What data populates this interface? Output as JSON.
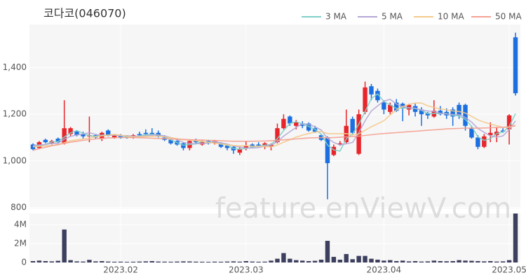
{
  "chart_data": [
    {
      "type": "candlestick",
      "title": "코다코(046070)",
      "watermark": "feature.enViewV.com",
      "up_color": "#e8252b",
      "down_color": "#1b6fe0",
      "open": [
        1070,
        1055,
        1090,
        1075,
        1095,
        1075,
        1115,
        1125,
        1115,
        1105,
        1110,
        1095,
        1130,
        1100,
        1110,
        1105,
        1100,
        1115,
        1120,
        1120,
        1120,
        1100,
        1090,
        1085,
        1075,
        1055,
        1085,
        1070,
        1085,
        1075,
        1075,
        1065,
        1060,
        1035,
        1055,
        1070,
        1070,
        1060,
        1060,
        1080,
        1140,
        1190,
        1150,
        1160,
        1160,
        1140,
        1110,
        1100,
        1025,
        1070,
        1080,
        1180,
        1030,
        1210,
        1320,
        1300,
        1250,
        1210,
        1250,
        1245,
        1220,
        1235,
        1220,
        1205,
        1190,
        1215,
        1210,
        1220,
        1240,
        1240,
        1140,
        1100,
        1060,
        1110,
        1110,
        1130,
        1135,
        1530
      ],
      "high": [
        1075,
        1085,
        1095,
        1090,
        1100,
        1260,
        1145,
        1130,
        1125,
        1190,
        1115,
        1125,
        1135,
        1115,
        1115,
        1110,
        1115,
        1125,
        1135,
        1140,
        1130,
        1110,
        1095,
        1090,
        1080,
        1090,
        1095,
        1090,
        1090,
        1090,
        1080,
        1070,
        1065,
        1060,
        1085,
        1075,
        1080,
        1080,
        1075,
        1160,
        1200,
        1195,
        1175,
        1170,
        1165,
        1150,
        1115,
        1105,
        1070,
        1085,
        1220,
        1190,
        1220,
        1340,
        1330,
        1310,
        1260,
        1250,
        1265,
        1250,
        1245,
        1245,
        1230,
        1210,
        1260,
        1235,
        1225,
        1230,
        1250,
        1245,
        1150,
        1110,
        1115,
        1165,
        1145,
        1140,
        1200,
        1550
      ],
      "low": [
        1045,
        1050,
        1075,
        1070,
        1075,
        1070,
        1105,
        1105,
        1095,
        1080,
        1095,
        1085,
        1105,
        1095,
        1095,
        1095,
        1095,
        1105,
        1110,
        1110,
        1100,
        1085,
        1070,
        1065,
        1045,
        1045,
        1075,
        1065,
        1070,
        1070,
        1055,
        1045,
        1030,
        1025,
        1045,
        1055,
        1060,
        1050,
        1045,
        1075,
        1135,
        1150,
        1135,
        1140,
        1125,
        1120,
        1085,
        835,
        1020,
        1065,
        1075,
        1110,
        1025,
        1200,
        1260,
        1250,
        1200,
        1200,
        1210,
        1170,
        1195,
        1190,
        1150,
        1180,
        1185,
        1195,
        1180,
        1150,
        1180,
        1130,
        1095,
        1050,
        1055,
        1080,
        1080,
        1120,
        1070,
        1280
      ],
      "close": [
        1050,
        1080,
        1080,
        1085,
        1080,
        1140,
        1140,
        1110,
        1105,
        1110,
        1100,
        1120,
        1110,
        1110,
        1100,
        1100,
        1110,
        1110,
        1115,
        1115,
        1105,
        1090,
        1075,
        1070,
        1055,
        1085,
        1080,
        1085,
        1075,
        1085,
        1060,
        1055,
        1045,
        1050,
        1065,
        1060,
        1065,
        1075,
        1070,
        1140,
        1180,
        1160,
        1165,
        1150,
        1130,
        1125,
        1090,
        990,
        1060,
        1075,
        1150,
        1120,
        1200,
        1315,
        1285,
        1260,
        1220,
        1240,
        1215,
        1225,
        1240,
        1210,
        1200,
        1195,
        1215,
        1200,
        1195,
        1190,
        1195,
        1150,
        1100,
        1060,
        1105,
        1120,
        1125,
        1125,
        1195,
        1290
      ],
      "series": [
        {
          "name": "3 MA",
          "color": "#7fd0c8",
          "values": [
            1060,
            1065,
            1070,
            1082,
            1082,
            1102,
            1120,
            1130,
            1118,
            1108,
            1105,
            1110,
            1110,
            1113,
            1107,
            1103,
            1103,
            1107,
            1112,
            1113,
            1112,
            1103,
            1090,
            1078,
            1067,
            1070,
            1073,
            1083,
            1080,
            1082,
            1073,
            1067,
            1053,
            1050,
            1053,
            1058,
            1063,
            1067,
            1070,
            1095,
            1130,
            1160,
            1168,
            1158,
            1148,
            1135,
            1115,
            1068,
            1047,
            1042,
            1095,
            1115,
            1157,
            1212,
            1267,
            1287,
            1255,
            1240,
            1225,
            1227,
            1227,
            1225,
            1217,
            1202,
            1203,
            1203,
            1203,
            1195,
            1193,
            1178,
            1148,
            1103,
            1088,
            1095,
            1117,
            1123,
            1148,
            1203
          ]
        },
        {
          "name": "5 MA",
          "color": "#b4a7d6",
          "values": [
            1065,
            1068,
            1070,
            1075,
            1075,
            1093,
            1105,
            1111,
            1115,
            1121,
            1113,
            1109,
            1109,
            1110,
            1108,
            1108,
            1106,
            1106,
            1107,
            1110,
            1111,
            1107,
            1100,
            1091,
            1079,
            1075,
            1073,
            1075,
            1076,
            1082,
            1077,
            1072,
            1064,
            1059,
            1055,
            1055,
            1057,
            1063,
            1067,
            1082,
            1106,
            1125,
            1143,
            1159,
            1157,
            1146,
            1132,
            1097,
            1079,
            1068,
            1073,
            1079,
            1121,
            1172,
            1214,
            1236,
            1256,
            1264,
            1244,
            1232,
            1228,
            1226,
            1218,
            1214,
            1212,
            1204,
            1201,
            1199,
            1199,
            1186,
            1166,
            1139,
            1122,
            1107,
            1102,
            1107,
            1134,
            1171
          ]
        },
        {
          "name": "10 MA",
          "color": "#f4c98a",
          "values": [
            1060,
            1062,
            1064,
            1066,
            1068,
            1078,
            1086,
            1090,
            1094,
            1098,
            1103,
            1107,
            1110,
            1113,
            1110,
            1106,
            1103,
            1103,
            1104,
            1105,
            1106,
            1103,
            1099,
            1095,
            1090,
            1089,
            1086,
            1083,
            1079,
            1076,
            1072,
            1069,
            1066,
            1064,
            1065,
            1063,
            1062,
            1061,
            1060,
            1068,
            1080,
            1090,
            1102,
            1110,
            1117,
            1123,
            1126,
            1117,
            1116,
            1116,
            1117,
            1111,
            1115,
            1131,
            1146,
            1159,
            1172,
            1197,
            1218,
            1233,
            1242,
            1248,
            1248,
            1236,
            1229,
            1222,
            1219,
            1214,
            1212,
            1205,
            1191,
            1176,
            1166,
            1158,
            1151,
            1144,
            1144,
            1152
          ]
        },
        {
          "name": "50 MA",
          "color": "#f4a090",
          "values": [
            1045,
            1052,
            1058,
            1064,
            1070,
            1075,
            1080,
            1084,
            1088,
            1091,
            1094,
            1096,
            1098,
            1099,
            1100,
            1100,
            1100,
            1099,
            1098,
            1097,
            1096,
            1095,
            1094,
            1093,
            1092,
            1091,
            1090,
            1089,
            1088,
            1087,
            1086,
            1085,
            1084,
            1084,
            1084,
            1084,
            1085,
            1085,
            1086,
            1088,
            1090,
            1092,
            1094,
            1096,
            1098,
            1099,
            1100,
            1099,
            1100,
            1101,
            1103,
            1104,
            1106,
            1109,
            1112,
            1115,
            1117,
            1119,
            1121,
            1123,
            1125,
            1127,
            1129,
            1131,
            1133,
            1135,
            1137,
            1138,
            1139,
            1140,
            1140,
            1140,
            1141,
            1142,
            1143,
            1144,
            1146,
            1150
          ]
        }
      ],
      "ylim": [
        795,
        1585
      ],
      "yticks": [
        800,
        {
          "value": 1000,
          "label": "1,000"
        },
        {
          "value": 1200,
          "label": "1,200"
        },
        {
          "value": 1400,
          "label": "1,400"
        }
      ],
      "grid": true
    },
    {
      "type": "bar",
      "color": "#3d3f5e",
      "values": [
        150000,
        200000,
        150000,
        120000,
        180000,
        3500000,
        250000,
        120000,
        100000,
        280000,
        120000,
        150000,
        100000,
        80000,
        90000,
        70000,
        80000,
        100000,
        120000,
        150000,
        100000,
        90000,
        80000,
        100000,
        120000,
        110000,
        90000,
        80000,
        70000,
        90000,
        80000,
        100000,
        120000,
        90000,
        150000,
        100000,
        80000,
        90000,
        200000,
        400000,
        1000000,
        400000,
        250000,
        200000,
        150000,
        180000,
        300000,
        2300000,
        600000,
        300000,
        900000,
        350000,
        700000,
        700000,
        400000,
        300000,
        200000,
        250000,
        150000,
        200000,
        120000,
        150000,
        100000,
        120000,
        200000,
        150000,
        130000,
        150000,
        250000,
        200000,
        180000,
        150000,
        120000,
        150000,
        100000,
        120000,
        250000,
        5200000
      ],
      "ylim": [
        0,
        5200000
      ],
      "yticks": [
        0,
        {
          "value": 2000000,
          "label": "2M"
        },
        {
          "value": 4000000,
          "label": "4M"
        }
      ],
      "xticks": [
        {
          "value": 14,
          "label": "2023.02"
        },
        {
          "value": 34,
          "label": "2023.03"
        },
        {
          "value": 56,
          "label": "2023.04"
        },
        {
          "value": 76,
          "label": "2023.05"
        }
      ],
      "grid": true
    }
  ]
}
